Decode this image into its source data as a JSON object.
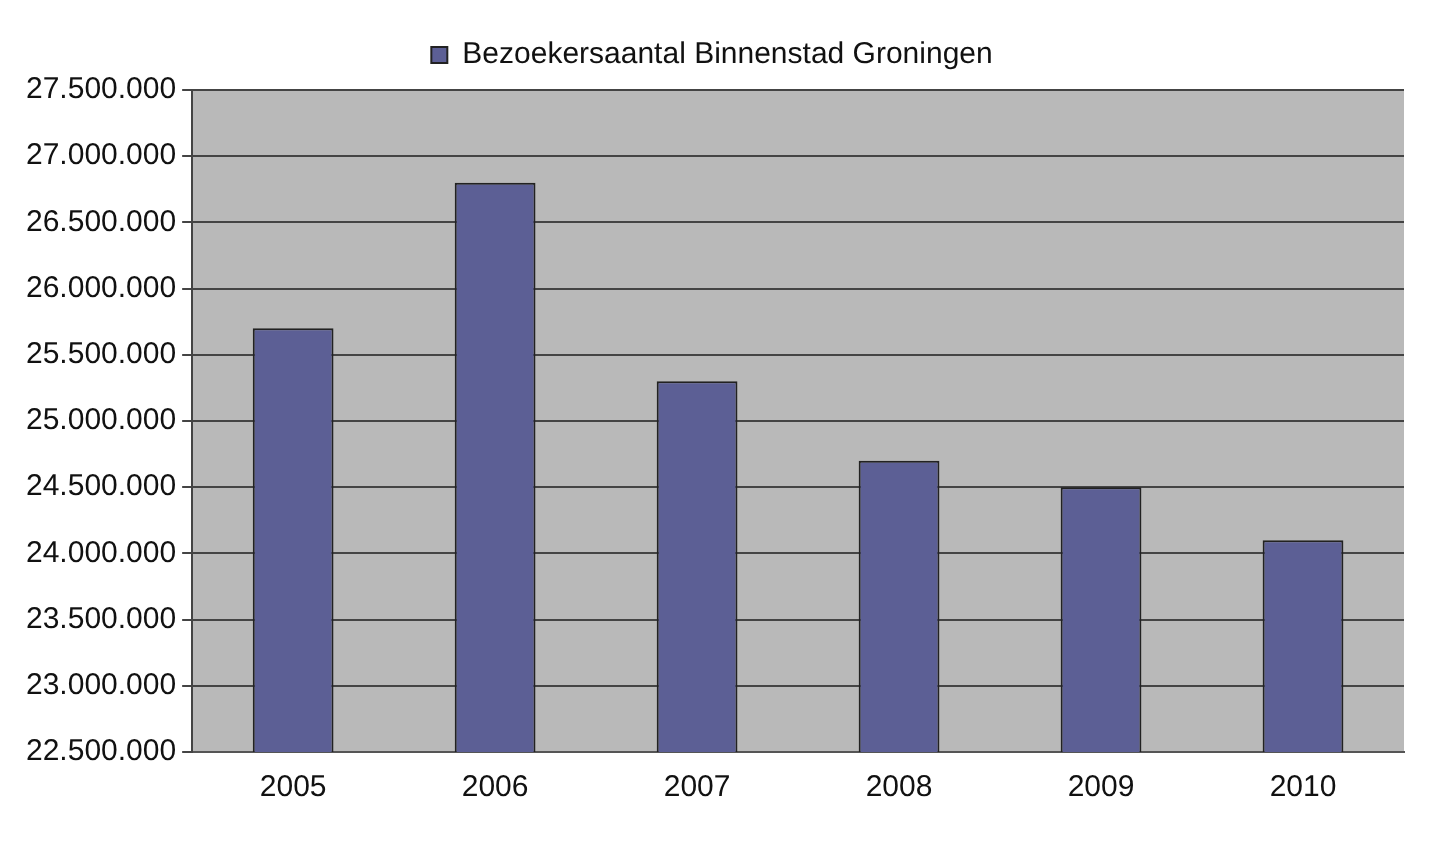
{
  "chart_data": {
    "type": "bar",
    "categories": [
      "2005",
      "2006",
      "2007",
      "2008",
      "2009",
      "2010"
    ],
    "series": [
      {
        "name": "Bezoekersaantal Binnenstad Groningen",
        "color": "#5c5f95",
        "values": [
          25700000,
          26800000,
          25300000,
          24700000,
          24500000,
          24100000
        ]
      }
    ],
    "ylim": [
      22500000,
      27500000
    ],
    "yticks": [
      {
        "value": 22500000,
        "label": "22.500.000"
      },
      {
        "value": 23000000,
        "label": "23.000.000"
      },
      {
        "value": 23500000,
        "label": "23.500.000"
      },
      {
        "value": 24000000,
        "label": "24.000.000"
      },
      {
        "value": 24500000,
        "label": "24.500.000"
      },
      {
        "value": 25000000,
        "label": "25.000.000"
      },
      {
        "value": 25500000,
        "label": "25.500.000"
      },
      {
        "value": 26000000,
        "label": "26.000.000"
      },
      {
        "value": 26500000,
        "label": "26.500.000"
      },
      {
        "value": 27000000,
        "label": "27.000.000"
      },
      {
        "value": 27500000,
        "label": "27.500.000"
      }
    ],
    "grid": "y",
    "legend": "top"
  }
}
